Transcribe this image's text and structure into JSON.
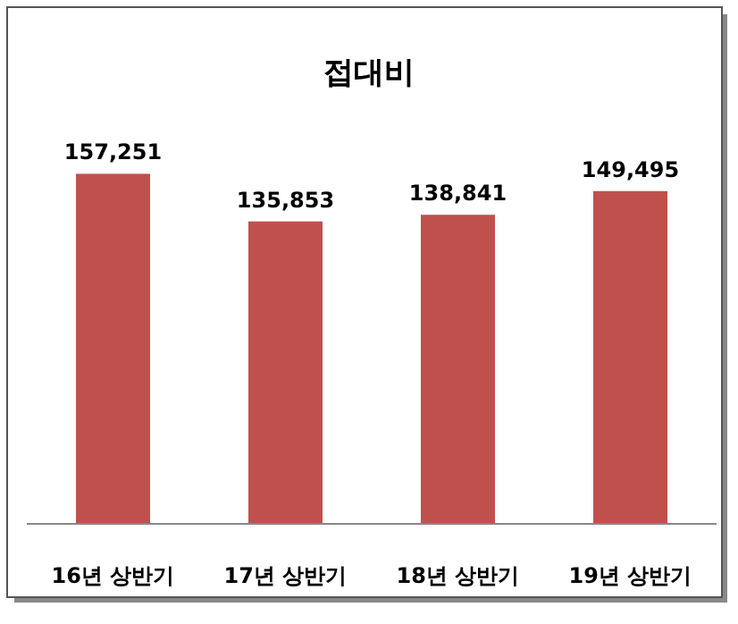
{
  "chart_data": {
    "type": "bar",
    "title": "접대비",
    "categories": [
      "16년 상반기",
      "17년 상반기",
      "18년 상반기",
      "19년 상반기"
    ],
    "values": [
      157251,
      135853,
      138841,
      149495
    ],
    "color": "#c0504d",
    "value_labels": [
      "157,251",
      "135,853",
      "138,841",
      "149,495"
    ]
  }
}
